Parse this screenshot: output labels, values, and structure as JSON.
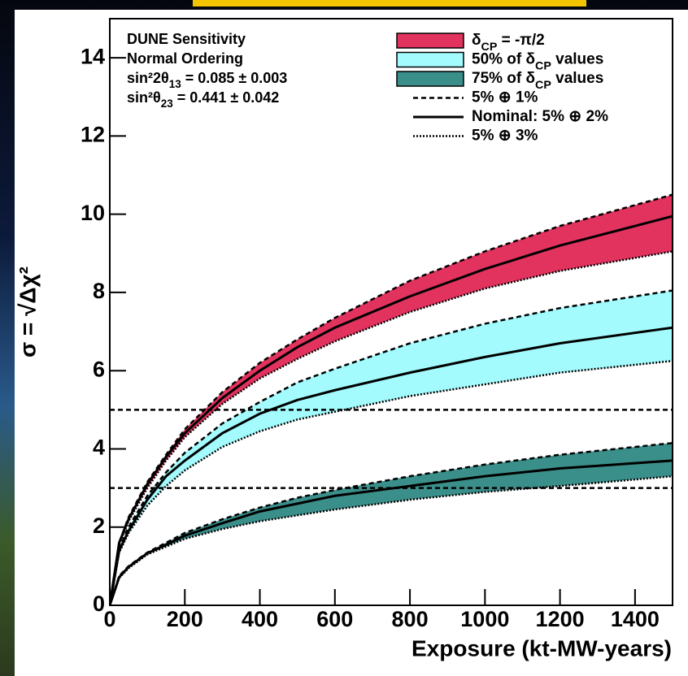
{
  "chart_data": {
    "type": "band",
    "annotations": [
      "DUNE Sensitivity",
      "Normal Ordering",
      "sin²2θ13 = 0.085 ± 0.003",
      "sin²θ23 = 0.441 ± 0.042"
    ],
    "xlabel": "Exposure (kt-MW-years)",
    "ylabel": "σ = √Δχ²",
    "xlim": [
      0,
      1500
    ],
    "ylim": [
      0,
      15
    ],
    "xticks": [
      0,
      200,
      400,
      600,
      800,
      1000,
      1200,
      1400
    ],
    "yticks": [
      0,
      2,
      4,
      6,
      8,
      10,
      12,
      14
    ],
    "x": [
      0,
      25,
      50,
      100,
      150,
      200,
      300,
      400,
      500,
      600,
      800,
      1000,
      1200,
      1500
    ],
    "line_styles": [
      {
        "name": "5% ⊕ 1%",
        "dash": "dashed"
      },
      {
        "name": "Nominal: 5% ⊕ 2%",
        "dash": "solid"
      },
      {
        "name": "5% ⊕ 3%",
        "dash": "dotted"
      }
    ],
    "bands": [
      {
        "name": "δCP = -π/2",
        "color": "#e2335f",
        "curves": [
          [
            0,
            1.6,
            2.25,
            3.15,
            3.85,
            4.5,
            5.45,
            6.2,
            6.8,
            7.35,
            8.3,
            9.05,
            9.7,
            10.5
          ],
          [
            0,
            1.6,
            2.2,
            3.1,
            3.8,
            4.4,
            5.3,
            6.0,
            6.6,
            7.1,
            7.9,
            8.6,
            9.2,
            9.95
          ],
          [
            0,
            1.55,
            2.15,
            3.0,
            3.7,
            4.3,
            5.15,
            5.8,
            6.3,
            6.75,
            7.5,
            8.1,
            8.55,
            9.05
          ]
        ]
      },
      {
        "name": "50% of δCP values",
        "color": "#a3fbfd",
        "curves": [
          [
            0,
            1.45,
            2.0,
            2.8,
            3.4,
            3.9,
            4.65,
            5.2,
            5.7,
            6.05,
            6.7,
            7.2,
            7.6,
            8.05
          ],
          [
            0,
            1.4,
            1.9,
            2.7,
            3.3,
            3.7,
            4.4,
            4.9,
            5.25,
            5.5,
            5.95,
            6.35,
            6.7,
            7.1
          ],
          [
            0,
            1.35,
            1.85,
            2.55,
            3.05,
            3.45,
            4.05,
            4.45,
            4.75,
            4.95,
            5.35,
            5.65,
            5.95,
            6.25
          ]
        ]
      },
      {
        "name": "75% of δCP values",
        "color": "#3b8f8b",
        "curves": [
          [
            0,
            0.75,
            1.0,
            1.35,
            1.6,
            1.85,
            2.2,
            2.5,
            2.75,
            2.95,
            3.3,
            3.6,
            3.85,
            4.15
          ],
          [
            0,
            0.72,
            0.98,
            1.33,
            1.55,
            1.78,
            2.1,
            2.4,
            2.6,
            2.8,
            3.05,
            3.3,
            3.5,
            3.7
          ],
          [
            0,
            0.7,
            0.95,
            1.3,
            1.5,
            1.7,
            1.95,
            2.15,
            2.3,
            2.45,
            2.7,
            2.9,
            3.05,
            3.3
          ]
        ]
      }
    ],
    "reference_lines": [
      3,
      5
    ]
  }
}
